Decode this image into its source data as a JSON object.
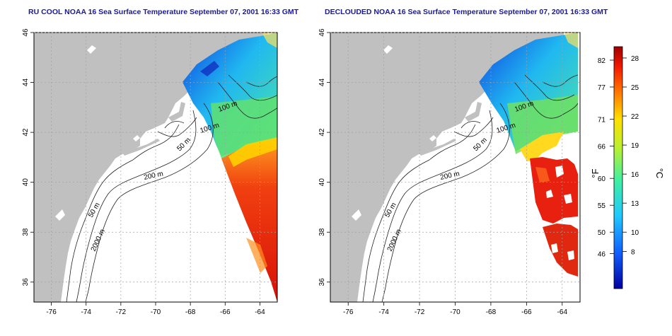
{
  "panels": [
    {
      "id": "left",
      "title": "RU COOL NOAA 16 Sea Surface Temperature September 07, 2001 16:33 GMT",
      "contour_labels": [
        "100 m",
        "100 m",
        "50 m",
        "200 m",
        "50 m",
        "2000 m"
      ]
    },
    {
      "id": "right",
      "title": "DECLOUDED NOAA 16 Sea Surface Temperature September 07, 2001 16:33 GMT",
      "contour_labels": [
        "100 m",
        "100 m",
        "50 m",
        "200 m",
        "50 m",
        "2000 m"
      ]
    }
  ],
  "axes": {
    "lon_ticks": [
      "-76",
      "-74",
      "-72",
      "-70",
      "-68",
      "-66",
      "-64"
    ],
    "lat_ticks": [
      "46",
      "44",
      "42",
      "40",
      "38",
      "36"
    ]
  },
  "colorbar": {
    "fahrenheit_ticks": [
      "82",
      "77",
      "71",
      "66",
      "60",
      "55",
      "50",
      "46"
    ],
    "celsius_ticks": [
      "28",
      "25",
      "22",
      "19",
      "16",
      "13",
      "10",
      "8"
    ],
    "fahrenheit_unit": "°F",
    "celsius_unit": "°C"
  },
  "colors": {
    "land": "#c0c0c0",
    "water_bg": "#ffffff",
    "gridline": "#a0a0a0",
    "title": "#1a1a9a"
  }
}
